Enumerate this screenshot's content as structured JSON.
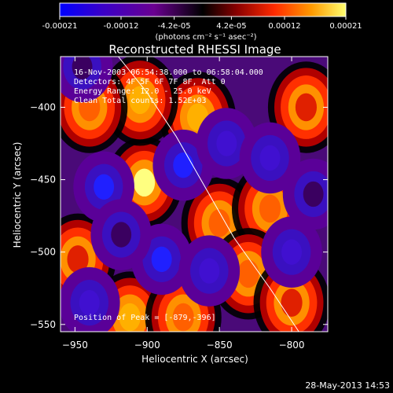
{
  "colorbar": {
    "tick_labels": [
      "-0.00021",
      "-0.00012",
      "-4.2e-05",
      "4.2e-05",
      "0.00012",
      "0.00021"
    ],
    "tick_values": [
      -0.00021,
      -0.00012,
      -4.2e-05,
      4.2e-05,
      0.00012,
      0.00021
    ],
    "range": [
      -0.00021,
      0.00021
    ],
    "unit_label": "(photons cm⁻² s⁻¹ asec⁻²)",
    "colors": [
      "#0000ff",
      "#3a00c8",
      "#6a0090",
      "#000000",
      "#8a0000",
      "#ff2a00",
      "#ff9a00",
      "#ffff70"
    ]
  },
  "chart_data": {
    "type": "heatmap",
    "title": "Reconstructed RHESSI Image",
    "xlabel": "Heliocentric X (arcsec)",
    "ylabel": "Heliocentric Y (arcsec)",
    "xlim": [
      -960,
      -775
    ],
    "ylim": [
      -555,
      -365
    ],
    "x_ticks": [
      -950,
      -900,
      -850,
      -800
    ],
    "y_ticks": [
      -400,
      -450,
      -500,
      -550
    ],
    "x_tick_labels": [
      "−950",
      "−900",
      "−850",
      "−800"
    ],
    "y_tick_labels": [
      "−400",
      "−450",
      "−500",
      "−550"
    ],
    "colormap": "blue-purple-black-red-orange-yellow",
    "sources": [
      {
        "x": -902,
        "y": -452,
        "value": 0.0002
      },
      {
        "x": -865,
        "y": -407,
        "value": 0.00016
      },
      {
        "x": -905,
        "y": -395,
        "value": 0.00015
      },
      {
        "x": -940,
        "y": -400,
        "value": 0.00012
      },
      {
        "x": -850,
        "y": -480,
        "value": 0.00014
      },
      {
        "x": -815,
        "y": -470,
        "value": 0.00013
      },
      {
        "x": -912,
        "y": -545,
        "value": 0.00015
      },
      {
        "x": -875,
        "y": -545,
        "value": 0.00014
      },
      {
        "x": -830,
        "y": -515,
        "value": 0.00012
      },
      {
        "x": -790,
        "y": -400,
        "value": 0.00011
      },
      {
        "x": -948,
        "y": -505,
        "value": 9e-05
      },
      {
        "x": -800,
        "y": -535,
        "value": 0.0001
      },
      {
        "x": -930,
        "y": -455,
        "value": -0.00018
      },
      {
        "x": -875,
        "y": -440,
        "value": -0.00016
      },
      {
        "x": -845,
        "y": -425,
        "value": -0.00014
      },
      {
        "x": -815,
        "y": -435,
        "value": -0.00013
      },
      {
        "x": -890,
        "y": -505,
        "value": -0.00018
      },
      {
        "x": -940,
        "y": -535,
        "value": -0.00015
      },
      {
        "x": -857,
        "y": -513,
        "value": -0.00012
      },
      {
        "x": -800,
        "y": -500,
        "value": -0.00014
      },
      {
        "x": -918,
        "y": -488,
        "value": -0.0001
      },
      {
        "x": -785,
        "y": -460,
        "value": -0.00011
      },
      {
        "x": -945,
        "y": -372,
        "value": -9e-05
      }
    ],
    "limb": [
      [
        -920,
        -365
      ],
      [
        -900,
        -390
      ],
      [
        -880,
        -420
      ],
      [
        -860,
        -455
      ],
      [
        -840,
        -490
      ],
      [
        -815,
        -525
      ],
      [
        -795,
        -555
      ]
    ]
  },
  "info": {
    "time": "16-Nov-2003 06:54:38.000 to 06:58:04.000",
    "detectors": "Detectors: 4F 5F 6F 7F 8F, Att 0",
    "energy": "Energy Range: 12.0 - 25.0 keV",
    "clean": "Clean    Total counts: 1.52E+03",
    "peak": "Position of Peak = [-879,-396]"
  },
  "footer": {
    "date": "28-May-2013 14:53"
  }
}
